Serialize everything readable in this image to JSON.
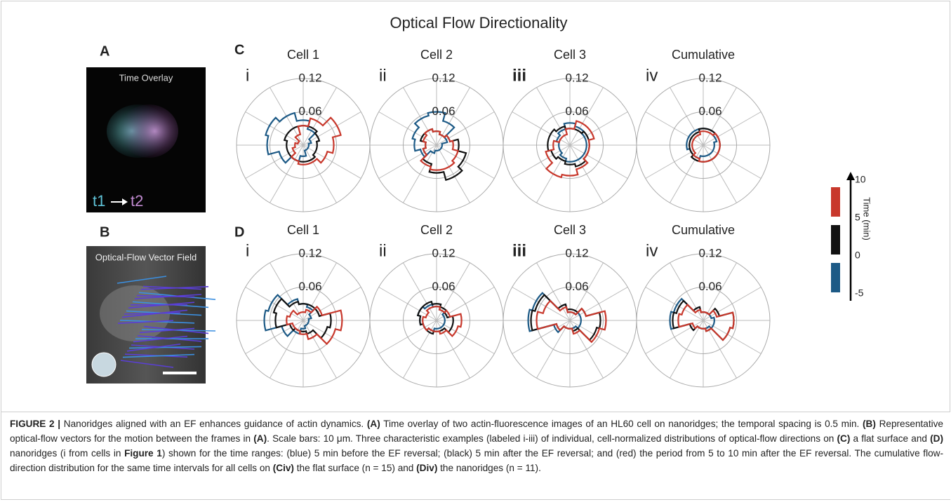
{
  "figure": {
    "title": "Optical Flow Directionality",
    "colors": [
      "#1d5a86",
      "#111111",
      "#c8382c"
    ],
    "rlim": [
      0,
      0.12
    ],
    "rticks": [
      0.06,
      0.12
    ],
    "panels": [
      {
        "label": "A",
        "image_title": "Time Overlay",
        "t1": "t1",
        "t2": "t2"
      },
      {
        "label": "B",
        "image_title": "Optical-Flow Vector Field"
      }
    ],
    "rows": [
      {
        "label": "C",
        "plots": [
          {
            "numeral": "i",
            "title": "Cell 1",
            "series": [
              [
                0.01,
                0.015,
                0.03,
                0.045,
                0.06,
                0.07,
                0.065,
                0.045,
                0.03,
                0.02,
                0.01,
                0.01
              ],
              [
                0.025,
                0.03,
                0.035,
                0.035,
                0.035,
                0.035,
                0.03,
                0.03,
                0.03,
                0.03,
                0.03,
                0.025
              ],
              [
                0.055,
                0.07,
                0.05,
                0.035,
                0.02,
                0.01,
                0.015,
                0.02,
                0.03,
                0.035,
                0.035,
                0.045
              ]
            ]
          },
          {
            "numeral": "ii",
            "title": "Cell 2",
            "series": [
              [
                0.01,
                0.02,
                0.045,
                0.06,
                0.055,
                0.045,
                0.04,
                0.03,
                0.015,
                0.01,
                0.01,
                0.01
              ],
              [
                0.04,
                0.025,
                0.02,
                0.025,
                0.03,
                0.03,
                0.02,
                0.025,
                0.035,
                0.05,
                0.065,
                0.055
              ],
              [
                0.03,
                0.025,
                0.02,
                0.025,
                0.03,
                0.025,
                0.02,
                0.025,
                0.04,
                0.045,
                0.045,
                0.04
              ]
            ]
          },
          {
            "numeral": "iii",
            "title": "Cell 3",
            "series": [
              [
                0.03,
                0.03,
                0.035,
                0.04,
                0.03,
                0.025,
                0.02,
                0.02,
                0.025,
                0.03,
                0.03,
                0.03
              ],
              [
                0.035,
                0.035,
                0.03,
                0.03,
                0.035,
                0.04,
                0.04,
                0.035,
                0.03,
                0.035,
                0.04,
                0.035
              ],
              [
                0.035,
                0.045,
                0.045,
                0.03,
                0.02,
                0.02,
                0.03,
                0.045,
                0.06,
                0.055,
                0.045,
                0.035
              ]
            ]
          },
          {
            "numeral": "iv",
            "title": "Cumulative",
            "series": [
              [
                0.02,
                0.025,
                0.03,
                0.03,
                0.03,
                0.03,
                0.03,
                0.025,
                0.025,
                0.02,
                0.02,
                0.02
              ],
              [
                0.03,
                0.03,
                0.03,
                0.03,
                0.025,
                0.025,
                0.025,
                0.025,
                0.03,
                0.03,
                0.03,
                0.03
              ],
              [
                0.03,
                0.03,
                0.025,
                0.025,
                0.02,
                0.02,
                0.02,
                0.02,
                0.025,
                0.03,
                0.03,
                0.03
              ]
            ]
          }
        ]
      },
      {
        "label": "D",
        "plots": [
          {
            "numeral": "i",
            "title": "Cell 1",
            "series": [
              [
                0.01,
                0.015,
                0.025,
                0.03,
                0.04,
                0.065,
                0.07,
                0.04,
                0.025,
                0.015,
                0.01,
                0.01
              ],
              [
                0.05,
                0.03,
                0.03,
                0.03,
                0.035,
                0.055,
                0.05,
                0.025,
                0.02,
                0.02,
                0.025,
                0.045
              ],
              [
                0.07,
                0.035,
                0.02,
                0.015,
                0.015,
                0.025,
                0.03,
                0.02,
                0.02,
                0.025,
                0.035,
                0.06
              ]
            ]
          },
          {
            "numeral": "ii",
            "title": "Cell 2",
            "series": [
              [
                0.015,
                0.015,
                0.02,
                0.025,
                0.03,
                0.035,
                0.03,
                0.025,
                0.02,
                0.015,
                0.015,
                0.015
              ],
              [
                0.03,
                0.02,
                0.025,
                0.03,
                0.035,
                0.035,
                0.03,
                0.025,
                0.025,
                0.02,
                0.02,
                0.03
              ],
              [
                0.045,
                0.025,
                0.02,
                0.025,
                0.025,
                0.02,
                0.025,
                0.025,
                0.02,
                0.02,
                0.025,
                0.04
              ]
            ]
          },
          {
            "numeral": "iii",
            "title": "Cell 3",
            "series": [
              [
                0.02,
                0.02,
                0.015,
                0.015,
                0.03,
                0.07,
                0.075,
                0.03,
                0.015,
                0.015,
                0.015,
                0.02
              ],
              [
                0.055,
                0.03,
                0.02,
                0.02,
                0.03,
                0.065,
                0.07,
                0.025,
                0.015,
                0.015,
                0.02,
                0.05
              ],
              [
                0.065,
                0.03,
                0.015,
                0.015,
                0.025,
                0.05,
                0.06,
                0.025,
                0.015,
                0.015,
                0.025,
                0.055
              ]
            ]
          },
          {
            "numeral": "iv",
            "title": "Cumulative",
            "series": [
              [
                0.02,
                0.015,
                0.015,
                0.015,
                0.025,
                0.055,
                0.06,
                0.025,
                0.015,
                0.015,
                0.015,
                0.02
              ],
              [
                0.055,
                0.03,
                0.015,
                0.015,
                0.025,
                0.05,
                0.055,
                0.025,
                0.015,
                0.015,
                0.02,
                0.05
              ],
              [
                0.055,
                0.025,
                0.015,
                0.015,
                0.02,
                0.04,
                0.045,
                0.02,
                0.015,
                0.015,
                0.02,
                0.05
              ]
            ]
          }
        ]
      }
    ],
    "colorbar": {
      "label": "Time (min)",
      "lim": [
        -5,
        10
      ],
      "ticks": [
        10,
        5,
        0,
        -5
      ]
    }
  },
  "caption": {
    "runs": [
      {
        "text": "FIGURE 2 |",
        "bold": true
      },
      {
        "text": " Nanoridges aligned with an EF enhances guidance of actin dynamics. ",
        "bold": false
      },
      {
        "text": "(A)",
        "bold": true
      },
      {
        "text": " Time overlay of two actin-fluorescence images of an HL60 cell on nanoridges; the temporal spacing is 0.5 min. ",
        "bold": false
      },
      {
        "text": "(B)",
        "bold": true
      },
      {
        "text": " Representative optical-flow vectors for the motion between the frames in ",
        "bold": false
      },
      {
        "text": "(A)",
        "bold": true
      },
      {
        "text": ". Scale bars: 10 μm. Three characteristic examples (labeled i-iii) of individual, cell-normalized distributions of optical-flow directions on ",
        "bold": false
      },
      {
        "text": "(C)",
        "bold": true
      },
      {
        "text": " a flat surface and ",
        "bold": false
      },
      {
        "text": "(D)",
        "bold": true
      },
      {
        "text": " nanoridges (i from cells in ",
        "bold": false
      },
      {
        "text": "Figure 1",
        "bold": true
      },
      {
        "text": ") shown for the time ranges: (blue) 5 min before the EF reversal; (black) 5 min after the EF reversal; and (red) the period from 5 to 10 min after the EF reversal. The cumulative flow-direction distribution for the same time intervals for all cells on ",
        "bold": false
      },
      {
        "text": "(Civ)",
        "bold": true
      },
      {
        "text": " the flat surface (n = 15) and ",
        "bold": false
      },
      {
        "text": "(Div)",
        "bold": true
      },
      {
        "text": " the nanoridges (n = 11).",
        "bold": false
      }
    ]
  }
}
